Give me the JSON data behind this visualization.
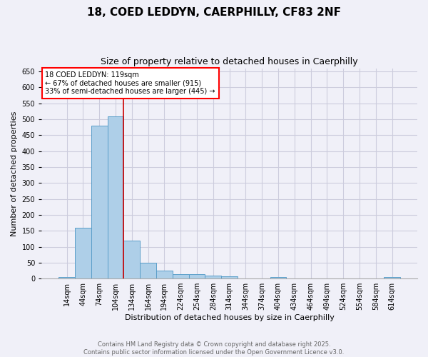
{
  "title_line1": "18, COED LEDDYN, CAERPHILLY, CF83 2NF",
  "title_line2": "Size of property relative to detached houses in Caerphilly",
  "xlabel": "Distribution of detached houses by size in Caerphilly",
  "ylabel": "Number of detached properties",
  "bin_labels": [
    "14sqm",
    "44sqm",
    "74sqm",
    "104sqm",
    "134sqm",
    "164sqm",
    "194sqm",
    "224sqm",
    "254sqm",
    "284sqm",
    "314sqm",
    "344sqm",
    "374sqm",
    "404sqm",
    "434sqm",
    "464sqm",
    "494sqm",
    "524sqm",
    "554sqm",
    "584sqm",
    "614sqm"
  ],
  "bin_values": [
    5,
    160,
    480,
    510,
    120,
    50,
    25,
    13,
    13,
    9,
    7,
    0,
    0,
    5,
    0,
    0,
    0,
    0,
    0,
    0,
    5
  ],
  "bar_color": "#aecfe8",
  "bar_edge_color": "#5a9ec9",
  "annotation_text": "18 COED LEDDYN: 119sqm\n← 67% of detached houses are smaller (915)\n33% of semi-detached houses are larger (445) →",
  "annotation_box_color": "white",
  "annotation_box_edge_color": "red",
  "red_line_color": "#cc0000",
  "ylim": [
    0,
    660
  ],
  "yticks": [
    0,
    50,
    100,
    150,
    200,
    250,
    300,
    350,
    400,
    450,
    500,
    550,
    600,
    650
  ],
  "footer_line1": "Contains HM Land Registry data © Crown copyright and database right 2025.",
  "footer_line2": "Contains public sector information licensed under the Open Government Licence v3.0.",
  "bg_color": "#f0f0f8",
  "grid_color": "#ccccdd",
  "title_fontsize": 11,
  "subtitle_fontsize": 9,
  "xlabel_fontsize": 8,
  "ylabel_fontsize": 8,
  "tick_fontsize": 7,
  "annotation_fontsize": 7,
  "footer_fontsize": 6
}
